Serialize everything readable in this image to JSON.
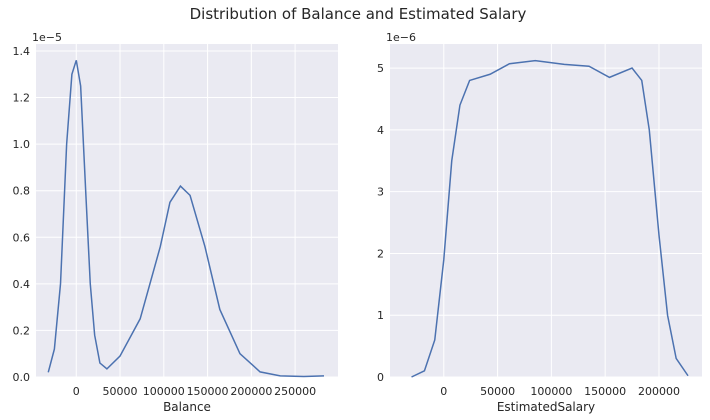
{
  "title": "Distribution of Balance and Estimated Salary",
  "chart_data": [
    {
      "type": "line",
      "xlabel": "Balance",
      "offset_label": "1e−5",
      "color": "#4c72b0",
      "grid": true,
      "x": [
        -32000,
        -25000,
        -18000,
        -11000,
        -5000,
        0,
        5000,
        11000,
        16000,
        21000,
        27000,
        35000,
        50000,
        73000,
        96000,
        107000,
        119000,
        130000,
        147000,
        164000,
        187000,
        210000,
        233000,
        260000,
        283000
      ],
      "values": [
        0.02,
        0.12,
        0.4,
        1.0,
        1.3,
        1.36,
        1.25,
        0.78,
        0.4,
        0.18,
        0.06,
        0.035,
        0.09,
        0.25,
        0.56,
        0.75,
        0.82,
        0.78,
        0.56,
        0.29,
        0.1,
        0.022,
        0.005,
        0.002,
        0.005
      ],
      "xlim": [
        -46000,
        299000
      ],
      "xticks": [
        0,
        50000,
        100000,
        150000,
        200000,
        250000
      ],
      "ylim": [
        0,
        1.43
      ],
      "yticks": [
        {
          "value": 0,
          "label": "0.0"
        },
        0.2,
        0.4,
        0.6,
        0.8,
        {
          "value": 1,
          "label": "1.0"
        },
        1.2,
        1.4
      ]
    },
    {
      "type": "line",
      "xlabel": "EstimatedSalary",
      "offset_label": "1e−6",
      "color": "#4c72b0",
      "grid": true,
      "x": [
        -30000,
        -18000,
        -8400,
        0,
        7400,
        15000,
        24000,
        43000,
        61000,
        85000,
        112000,
        135000,
        154000,
        175000,
        184000,
        191000,
        200000,
        208000,
        216000,
        227000
      ],
      "values": [
        0.0,
        0.1,
        0.6,
        1.9,
        3.5,
        4.4,
        4.8,
        4.9,
        5.07,
        5.12,
        5.06,
        5.03,
        4.85,
        5.0,
        4.8,
        4.0,
        2.3,
        1.0,
        0.3,
        0.02
      ],
      "xlim": [
        -50000,
        240000
      ],
      "xticks": [
        0,
        50000,
        100000,
        150000,
        200000
      ],
      "ylim": [
        0,
        5.39
      ],
      "yticks": [
        0,
        1,
        2,
        3,
        4,
        5
      ]
    }
  ]
}
